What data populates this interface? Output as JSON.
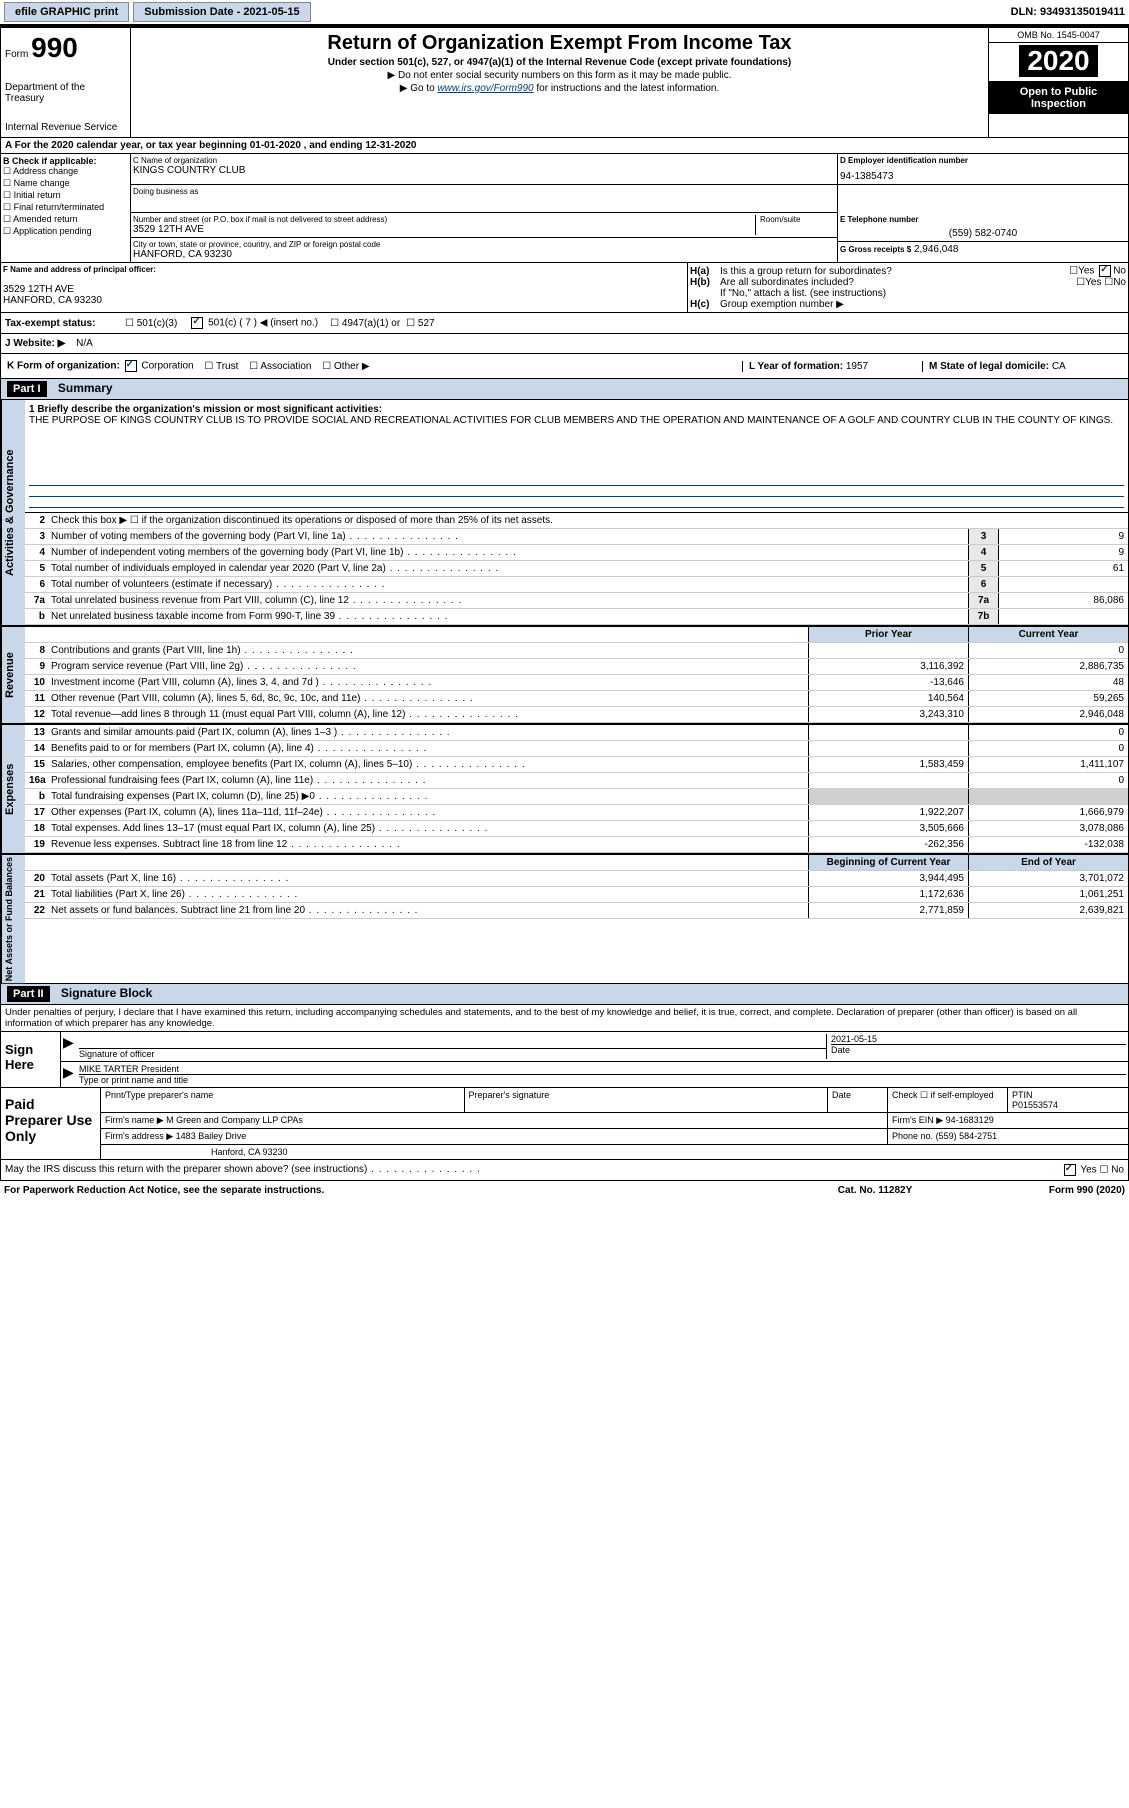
{
  "topbar": {
    "efile": "efile GRAPHIC print",
    "sub_label": "Submission Date - 2021-05-15",
    "dln": "DLN: 93493135019411"
  },
  "header": {
    "form_label": "Form",
    "form_num": "990",
    "dept1": "Department of the Treasury",
    "dept2": "Internal Revenue Service",
    "title": "Return of Organization Exempt From Income Tax",
    "sub": "Under section 501(c), 527, or 4947(a)(1) of the Internal Revenue Code (except private foundations)",
    "note1": "▶ Do not enter social security numbers on this form as it may be made public.",
    "note2_a": "▶ Go to ",
    "note2_link": "www.irs.gov/Form990",
    "note2_b": " for instructions and the latest information.",
    "omb": "OMB No. 1545-0047",
    "year": "2020",
    "inspect": "Open to Public Inspection"
  },
  "period": "A For the 2020 calendar year, or tax year beginning 01-01-2020    , and ending 12-31-2020",
  "sectionB": {
    "label": "B Check if applicable:",
    "items": [
      "Address change",
      "Name change",
      "Initial return",
      "Final return/terminated",
      "Amended return",
      "Application pending"
    ]
  },
  "sectionC": {
    "name_lbl": "C Name of organization",
    "name": "KINGS COUNTRY CLUB",
    "dba_lbl": "Doing business as",
    "addr_lbl": "Number and street (or P.O. box if mail is not delivered to street address)",
    "room_lbl": "Room/suite",
    "addr": "3529 12TH AVE",
    "city_lbl": "City or town, state or province, country, and ZIP or foreign postal code",
    "city": "HANFORD, CA  93230"
  },
  "sectionD": {
    "lbl": "D Employer identification number",
    "val": "94-1385473"
  },
  "sectionE": {
    "lbl": "E Telephone number",
    "val": "(559) 582-0740"
  },
  "sectionG": {
    "lbl": "G Gross receipts $",
    "val": "2,946,048"
  },
  "sectionF": {
    "lbl": "F Name and address of principal officer:",
    "addr1": "3529 12TH AVE",
    "addr2": "HANFORD, CA  93230"
  },
  "sectionH": {
    "a": "Is this a group return for subordinates?",
    "b": "Are all subordinates included?",
    "bnote": "If \"No,\" attach a list. (see instructions)",
    "c": "Group exemption number ▶",
    "yes": "Yes",
    "no": "No"
  },
  "sectionI": {
    "lbl": "Tax-exempt status:",
    "o1": "501(c)(3)",
    "o2": "501(c) ( 7 ) ◀ (insert no.)",
    "o3": "4947(a)(1) or",
    "o4": "527"
  },
  "sectionJ": {
    "lbl": "J  Website: ▶",
    "val": "N/A"
  },
  "sectionK": {
    "lbl": "K Form of organization:",
    "o1": "Corporation",
    "o2": "Trust",
    "o3": "Association",
    "o4": "Other ▶"
  },
  "sectionL": {
    "lbl": "L Year of formation:",
    "val": "1957"
  },
  "sectionM": {
    "lbl": "M State of legal domicile:",
    "val": "CA"
  },
  "part1": {
    "hdr": "Part I",
    "title": "Summary",
    "sidebar_act": "Activities & Governance",
    "sidebar_rev": "Revenue",
    "sidebar_exp": "Expenses",
    "sidebar_net": "Net Assets or Fund Balances",
    "line1_lbl": "1  Briefly describe the organization's mission or most significant activities:",
    "line1_txt": "THE PURPOSE OF KINGS COUNTRY CLUB IS TO PROVIDE SOCIAL AND RECREATIONAL ACTIVITIES FOR CLUB MEMBERS AND THE OPERATION AND MAINTENANCE OF A GOLF AND COUNTRY CLUB IN THE COUNTY OF KINGS.",
    "line2": "Check this box ▶ ☐  if the organization discontinued its operations or disposed of more than 25% of its net assets.",
    "rows_gov": [
      {
        "n": "3",
        "d": "Number of voting members of the governing body (Part VI, line 1a)",
        "bn": "3",
        "v": "9"
      },
      {
        "n": "4",
        "d": "Number of independent voting members of the governing body (Part VI, line 1b)",
        "bn": "4",
        "v": "9"
      },
      {
        "n": "5",
        "d": "Total number of individuals employed in calendar year 2020 (Part V, line 2a)",
        "bn": "5",
        "v": "61"
      },
      {
        "n": "6",
        "d": "Total number of volunteers (estimate if necessary)",
        "bn": "6",
        "v": ""
      },
      {
        "n": "7a",
        "d": "Total unrelated business revenue from Part VIII, column (C), line 12",
        "bn": "7a",
        "v": "86,086"
      },
      {
        "n": "b",
        "d": "Net unrelated business taxable income from Form 990-T, line 39",
        "bn": "7b",
        "v": ""
      }
    ],
    "py_hdr": "Prior Year",
    "cy_hdr": "Current Year",
    "rows_rev": [
      {
        "n": "8",
        "d": "Contributions and grants (Part VIII, line 1h)",
        "py": "",
        "cy": "0"
      },
      {
        "n": "9",
        "d": "Program service revenue (Part VIII, line 2g)",
        "py": "3,116,392",
        "cy": "2,886,735"
      },
      {
        "n": "10",
        "d": "Investment income (Part VIII, column (A), lines 3, 4, and 7d )",
        "py": "-13,646",
        "cy": "48"
      },
      {
        "n": "11",
        "d": "Other revenue (Part VIII, column (A), lines 5, 6d, 8c, 9c, 10c, and 11e)",
        "py": "140,564",
        "cy": "59,265"
      },
      {
        "n": "12",
        "d": "Total revenue—add lines 8 through 11 (must equal Part VIII, column (A), line 12)",
        "py": "3,243,310",
        "cy": "2,946,048"
      }
    ],
    "rows_exp": [
      {
        "n": "13",
        "d": "Grants and similar amounts paid (Part IX, column (A), lines 1–3 )",
        "py": "",
        "cy": "0"
      },
      {
        "n": "14",
        "d": "Benefits paid to or for members (Part IX, column (A), line 4)",
        "py": "",
        "cy": "0"
      },
      {
        "n": "15",
        "d": "Salaries, other compensation, employee benefits (Part IX, column (A), lines 5–10)",
        "py": "1,583,459",
        "cy": "1,411,107"
      },
      {
        "n": "16a",
        "d": "Professional fundraising fees (Part IX, column (A), line 11e)",
        "py": "",
        "cy": "0"
      },
      {
        "n": "b",
        "d": "Total fundraising expenses (Part IX, column (D), line 25) ▶0",
        "py": "gray",
        "cy": "gray"
      },
      {
        "n": "17",
        "d": "Other expenses (Part IX, column (A), lines 11a–11d, 11f–24e)",
        "py": "1,922,207",
        "cy": "1,666,979"
      },
      {
        "n": "18",
        "d": "Total expenses. Add lines 13–17 (must equal Part IX, column (A), line 25)",
        "py": "3,505,666",
        "cy": "3,078,086"
      },
      {
        "n": "19",
        "d": "Revenue less expenses. Subtract line 18 from line 12",
        "py": "-262,356",
        "cy": "-132,038"
      }
    ],
    "net_py": "Beginning of Current Year",
    "net_cy": "End of Year",
    "rows_net": [
      {
        "n": "20",
        "d": "Total assets (Part X, line 16)",
        "py": "3,944,495",
        "cy": "3,701,072"
      },
      {
        "n": "21",
        "d": "Total liabilities (Part X, line 26)",
        "py": "1,172,636",
        "cy": "1,061,251"
      },
      {
        "n": "22",
        "d": "Net assets or fund balances. Subtract line 21 from line 20",
        "py": "2,771,859",
        "cy": "2,639,821"
      }
    ]
  },
  "part2": {
    "hdr": "Part II",
    "title": "Signature Block",
    "decl": "Under penalties of perjury, I declare that I have examined this return, including accompanying schedules and statements, and to the best of my knowledge and belief, it is true, correct, and complete. Declaration of preparer (other than officer) is based on all information of which preparer has any knowledge.",
    "sign_here": "Sign Here",
    "sig_officer": "Signature of officer",
    "sig_date": "2021-05-15",
    "date_lbl": "Date",
    "name_title": "MIKE TARTER  President",
    "type_lbl": "Type or print name and title",
    "paid": "Paid Preparer Use Only",
    "prep_name_lbl": "Print/Type preparer's name",
    "prep_sig_lbl": "Preparer's signature",
    "prep_date_lbl": "Date",
    "check_lbl": "Check ☐ if self-employed",
    "ptin_lbl": "PTIN",
    "ptin": "P01553574",
    "firm_name_lbl": "Firm's name   ▶",
    "firm_name": "M Green and Company LLP CPAs",
    "firm_ein_lbl": "Firm's EIN ▶",
    "firm_ein": "94-1683129",
    "firm_addr_lbl": "Firm's address ▶",
    "firm_addr1": "1483 Bailey Drive",
    "firm_addr2": "Hanford, CA  93230",
    "phone_lbl": "Phone no.",
    "phone": "(559) 584-2751",
    "discuss": "May the IRS discuss this return with the preparer shown above? (see instructions)",
    "yes": "Yes",
    "no": "No"
  },
  "footer": {
    "left": "For Paperwork Reduction Act Notice, see the separate instructions.",
    "mid": "Cat. No. 11282Y",
    "right": "Form 990 (2020)"
  }
}
